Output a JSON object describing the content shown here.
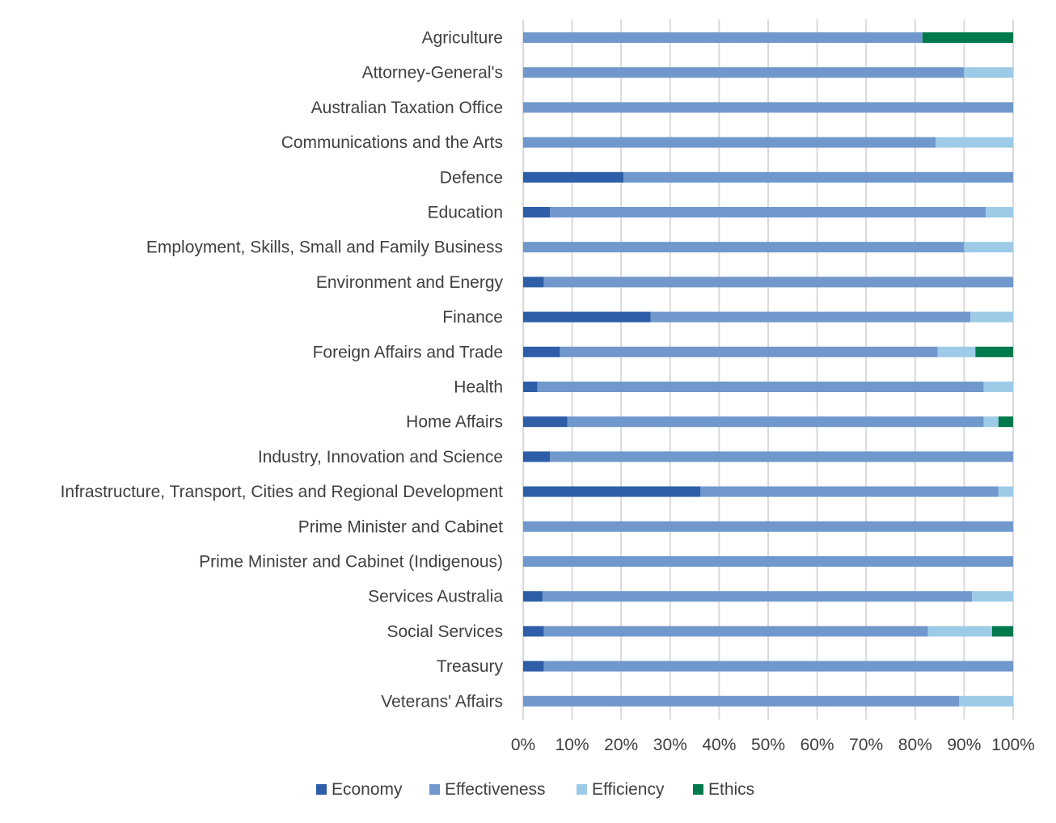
{
  "chart_data": {
    "type": "bar",
    "orientation": "horizontal",
    "stacked": "percent",
    "title": "",
    "xlabel": "",
    "ylabel": "",
    "xlim": [
      0,
      100
    ],
    "xticks": [
      "0%",
      "10%",
      "20%",
      "30%",
      "40%",
      "50%",
      "60%",
      "70%",
      "80%",
      "90%",
      "100%"
    ],
    "grid": "vertical",
    "legend_position": "bottom",
    "categories": [
      "Agriculture",
      "Attorney-General's",
      "Australian Taxation Office",
      "Communications and the Arts",
      "Defence",
      "Education",
      "Employment, Skills, Small and Family Business",
      "Environment and Energy",
      "Finance",
      "Foreign Affairs and Trade",
      "Health",
      "Home Affairs",
      "Industry, Innovation and Science",
      "Infrastructure, Transport, Cities and Regional Development",
      "Prime Minister and Cabinet",
      "Prime Minister and Cabinet (Indigenous)",
      "Services Australia",
      "Social Services",
      "Treasury",
      "Veterans' Affairs"
    ],
    "series": [
      {
        "name": "Economy",
        "color": "#2e5ea8",
        "values": [
          0,
          0,
          0,
          0,
          20.5,
          5.5,
          0,
          4.2,
          26,
          7.5,
          2.9,
          9,
          5.5,
          36.2,
          0,
          0,
          4,
          4.2,
          4.2,
          0
        ]
      },
      {
        "name": "Effectiveness",
        "color": "#7098cc",
        "values": [
          81.5,
          90,
          100,
          84.2,
          79.5,
          88.9,
          90,
          95.8,
          65.3,
          77.1,
          91.1,
          85,
          94.5,
          60.8,
          100,
          100,
          87.6,
          78.4,
          95.8,
          89
        ]
      },
      {
        "name": "Efficiency",
        "color": "#9dcbe7",
        "values": [
          0,
          10,
          0,
          15.8,
          0,
          5.6,
          10,
          0,
          8.7,
          7.7,
          6,
          3,
          0,
          3,
          0,
          0,
          8.4,
          13.1,
          0,
          11
        ]
      },
      {
        "name": "Ethics",
        "color": "#00794c",
        "values": [
          18.5,
          0,
          0,
          0,
          0,
          0,
          0,
          0,
          0,
          7.7,
          0,
          3,
          0,
          0,
          0,
          0,
          0,
          4.3,
          0,
          0
        ]
      }
    ]
  }
}
